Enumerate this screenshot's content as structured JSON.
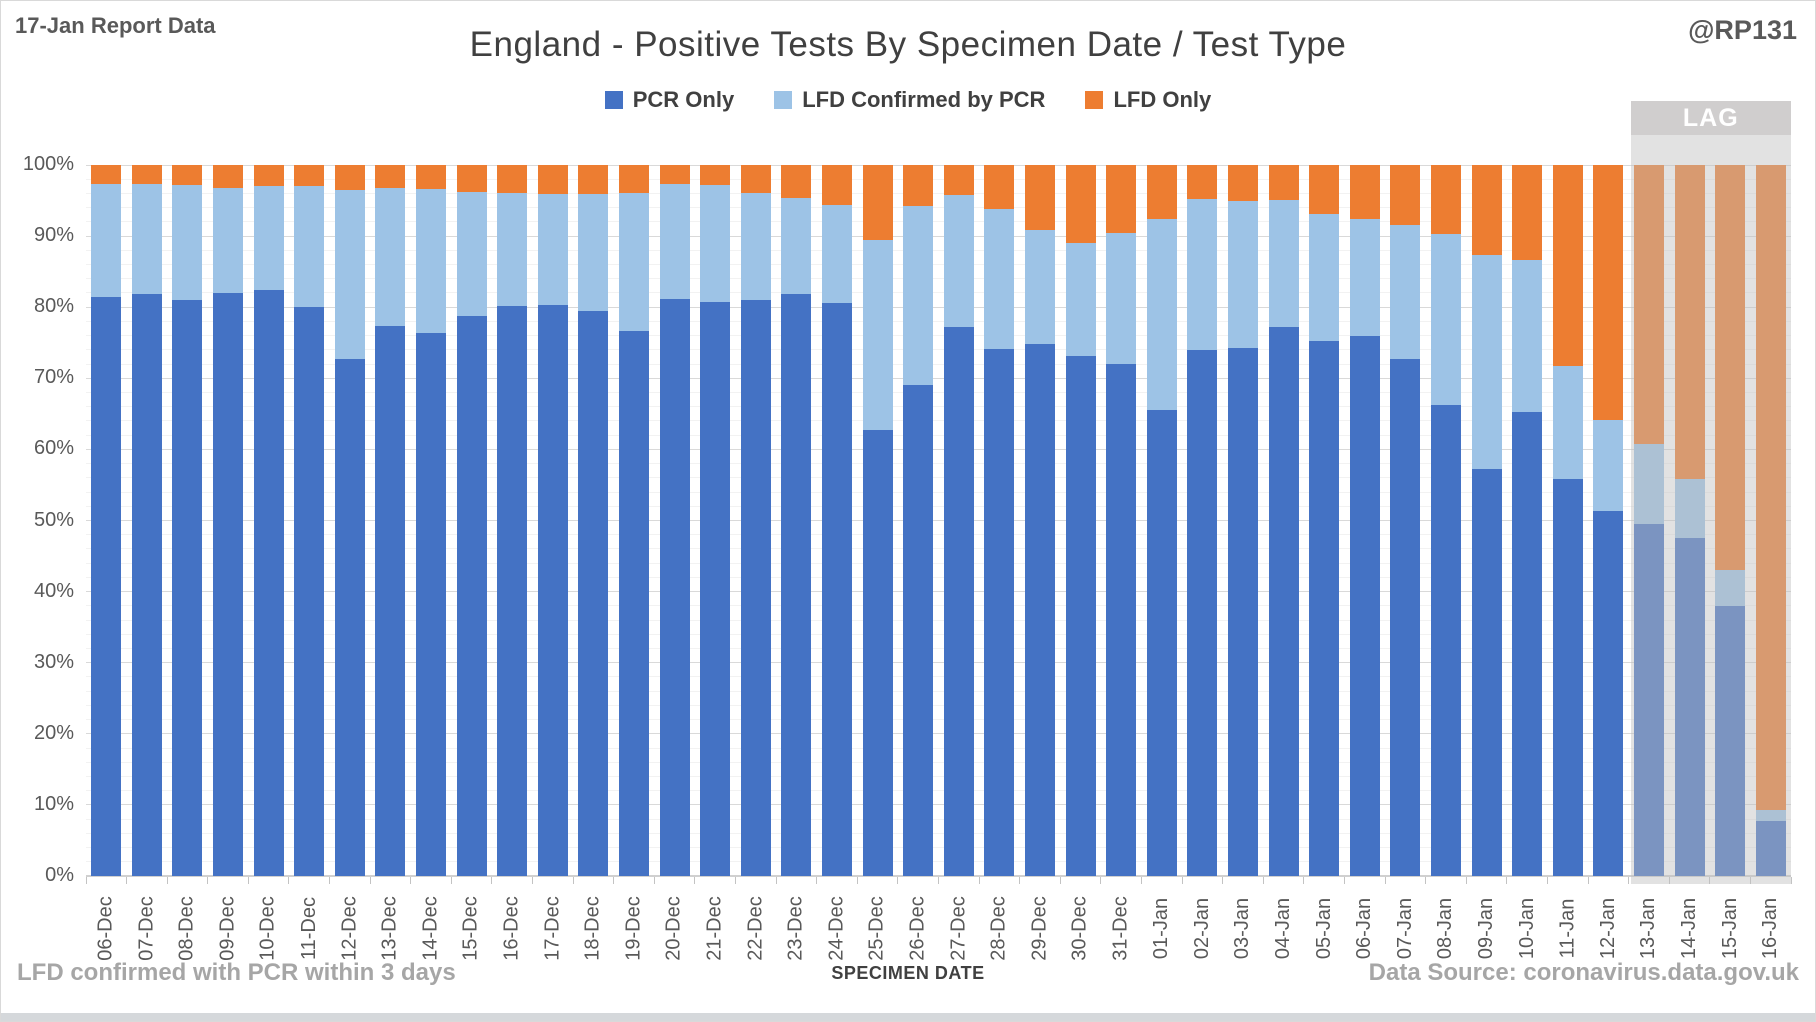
{
  "header": {
    "report_label": "17-Jan Report Data",
    "title": "England - Positive Tests By Specimen Date / Test Type",
    "handle": "@RP131"
  },
  "legend": [
    {
      "label": "PCR Only",
      "color": "#4472C4"
    },
    {
      "label": "LFD Confirmed by PCR",
      "color": "#9DC3E6"
    },
    {
      "label": "LFD Only",
      "color": "#ED7D31"
    }
  ],
  "footer": {
    "note": "LFD confirmed with PCR within 3 days",
    "x_axis_title": "SPECIMEN DATE",
    "source": "Data Source: coronavirus.data.gov.uk"
  },
  "lag": {
    "label": "LAG",
    "box_color": "#D0CECE",
    "overlay_color": "rgba(190,190,190,0.45)",
    "categories": [
      "13-Jan",
      "14-Jan",
      "15-Jan",
      "16-Jan"
    ]
  },
  "chart_data": {
    "type": "bar",
    "stacked": true,
    "unit": "percent of positive tests",
    "title": "England - Positive Tests By Specimen Date / Test Type",
    "xlabel": "SPECIMEN DATE",
    "ylabel": "",
    "ylim": [
      0,
      100
    ],
    "y_ticks": [
      "0%",
      "10%",
      "20%",
      "30%",
      "40%",
      "50%",
      "60%",
      "70%",
      "80%",
      "90%",
      "100%"
    ],
    "grid": "horizontal; major every 10%, minor every 2%",
    "legend_position": "top",
    "categories": [
      "06-Dec",
      "07-Dec",
      "08-Dec",
      "09-Dec",
      "10-Dec",
      "11-Dec",
      "12-Dec",
      "13-Dec",
      "14-Dec",
      "15-Dec",
      "16-Dec",
      "17-Dec",
      "18-Dec",
      "19-Dec",
      "20-Dec",
      "21-Dec",
      "22-Dec",
      "23-Dec",
      "24-Dec",
      "25-Dec",
      "26-Dec",
      "27-Dec",
      "28-Dec",
      "29-Dec",
      "30-Dec",
      "31-Dec",
      "01-Jan",
      "02-Jan",
      "03-Jan",
      "04-Jan",
      "05-Jan",
      "06-Jan",
      "07-Jan",
      "08-Jan",
      "09-Jan",
      "10-Jan",
      "11-Jan",
      "12-Jan",
      "13-Jan",
      "14-Jan",
      "15-Jan",
      "16-Jan"
    ],
    "series": [
      {
        "name": "PCR Only",
        "color": "#4472C4",
        "values": [
          81.5,
          81.8,
          81.0,
          82.0,
          82.4,
          80.0,
          72.7,
          77.3,
          76.4,
          78.8,
          80.2,
          80.3,
          79.4,
          76.6,
          81.1,
          80.8,
          81.0,
          81.8,
          80.6,
          62.8,
          69.1,
          77.2,
          74.1,
          74.8,
          73.2,
          72.0,
          65.6,
          74.0,
          74.2,
          77.2,
          75.3,
          76.0,
          72.7,
          66.2,
          57.2,
          65.3,
          55.9,
          51.3,
          49.5,
          47.5,
          38.0,
          7.8
        ]
      },
      {
        "name": "LFD Confirmed by PCR",
        "color": "#9DC3E6",
        "values": [
          15.8,
          15.6,
          16.2,
          14.8,
          14.7,
          17.1,
          23.8,
          19.5,
          20.2,
          17.4,
          15.8,
          15.6,
          16.5,
          19.5,
          16.3,
          16.4,
          15.1,
          13.5,
          13.8,
          26.6,
          25.2,
          18.6,
          19.7,
          16.0,
          15.9,
          18.5,
          26.8,
          21.2,
          20.8,
          17.9,
          17.8,
          16.4,
          18.8,
          24.1,
          30.1,
          21.3,
          15.9,
          12.9,
          11.3,
          8.3,
          5.0,
          1.5
        ]
      },
      {
        "name": "LFD Only",
        "color": "#ED7D31",
        "values": [
          2.7,
          2.6,
          2.8,
          3.2,
          2.9,
          2.9,
          3.5,
          3.2,
          3.4,
          3.8,
          4.0,
          4.1,
          4.1,
          3.9,
          2.6,
          2.8,
          3.9,
          4.7,
          5.6,
          10.6,
          5.7,
          4.2,
          6.2,
          9.2,
          10.9,
          9.5,
          7.6,
          4.8,
          5.0,
          4.9,
          6.9,
          7.6,
          8.5,
          9.7,
          12.7,
          13.4,
          28.2,
          35.8,
          39.2,
          44.2,
          57.0,
          90.7
        ]
      }
    ]
  }
}
